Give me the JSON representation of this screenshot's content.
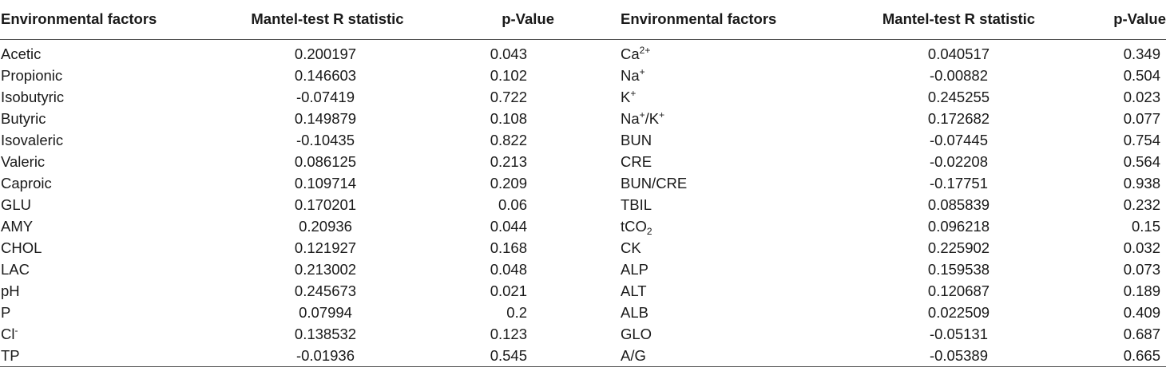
{
  "headers": {
    "factor1": "Environmental factors",
    "r1": "Mantel-test R statistic",
    "p1": "p-Value",
    "factor2": "Environmental factors",
    "r2": "Mantel-test R statistic",
    "p2": "p-Value"
  },
  "rows": [
    {
      "f1": "Acetic",
      "r1": "0.200197",
      "p1": "0.043",
      "f2": {
        "base": "Ca",
        "sup": "2+"
      },
      "r2": "0.040517",
      "p2": "0.349"
    },
    {
      "f1": "Propionic",
      "r1": "0.146603",
      "p1": "0.102",
      "f2": {
        "base": "Na",
        "sup": "+"
      },
      "r2": "-0.00882",
      "p2": "0.504"
    },
    {
      "f1": "Isobutyric",
      "r1": "-0.07419",
      "p1": "0.722",
      "f2": {
        "base": "K",
        "sup": "+"
      },
      "r2": "0.245255",
      "p2": "0.023"
    },
    {
      "f1": "Butyric",
      "r1": "0.149879",
      "p1": "0.108",
      "f2": {
        "base": "Na",
        "sup": "+",
        "mid": "/K",
        "sup2": "+"
      },
      "r2": "0.172682",
      "p2": "0.077"
    },
    {
      "f1": "Isovaleric",
      "r1": "-0.10435",
      "p1": "0.822",
      "f2": {
        "base": "BUN"
      },
      "r2": "-0.07445",
      "p2": "0.754"
    },
    {
      "f1": "Valeric",
      "r1": "0.086125",
      "p1": "0.213",
      "f2": {
        "base": "CRE"
      },
      "r2": "-0.02208",
      "p2": "0.564"
    },
    {
      "f1": "Caproic",
      "r1": "0.109714",
      "p1": "0.209",
      "f2": {
        "base": "BUN/CRE"
      },
      "r2": "-0.17751",
      "p2": "0.938"
    },
    {
      "f1": "GLU",
      "r1": "0.170201",
      "p1": "0.06",
      "f2": {
        "base": "TBIL"
      },
      "r2": "0.085839",
      "p2": "0.232"
    },
    {
      "f1": "AMY",
      "r1": "0.20936",
      "p1": "0.044",
      "f2": {
        "base": "tCO",
        "sub": "2"
      },
      "r2": "0.096218",
      "p2": "0.15"
    },
    {
      "f1": "CHOL",
      "r1": "0.121927",
      "p1": "0.168",
      "f2": {
        "base": "CK"
      },
      "r2": "0.225902",
      "p2": "0.032"
    },
    {
      "f1": "LAC",
      "r1": "0.213002",
      "p1": "0.048",
      "f2": {
        "base": "ALP"
      },
      "r2": "0.159538",
      "p2": "0.073"
    },
    {
      "f1": "pH",
      "r1": "0.245673",
      "p1": "0.021",
      "f2": {
        "base": "ALT"
      },
      "r2": "0.120687",
      "p2": "0.189"
    },
    {
      "f1": "P",
      "r1": "0.07994",
      "p1": "0.2",
      "f2": {
        "base": "ALB"
      },
      "r2": "0.022509",
      "p2": "0.409"
    },
    {
      "f1": {
        "base": "Cl",
        "sup": "-"
      },
      "r1": "0.138532",
      "p1": "0.123",
      "f2": {
        "base": "GLO"
      },
      "r2": "-0.05131",
      "p2": "0.687"
    },
    {
      "f1": "TP",
      "r1": "-0.01936",
      "p1": "0.545",
      "f2": {
        "base": "A/G"
      },
      "r2": "-0.05389",
      "p2": "0.665"
    }
  ]
}
